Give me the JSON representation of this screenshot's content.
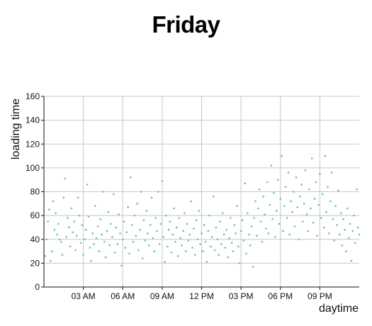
{
  "chart_data": {
    "type": "scatter",
    "title": "Friday",
    "xlabel": "daytime",
    "ylabel": "loading time",
    "x_unit": "hours",
    "xlim": [
      0,
      24
    ],
    "ylim": [
      0,
      160
    ],
    "yticks": [
      0,
      20,
      40,
      60,
      80,
      100,
      120,
      140,
      160
    ],
    "xticks": [
      {
        "value": 3,
        "label": "03 AM"
      },
      {
        "value": 6,
        "label": "06 AM"
      },
      {
        "value": 9,
        "label": "09 AM"
      },
      {
        "value": 12,
        "label": "12 PM"
      },
      {
        "value": 15,
        "label": "03 PM"
      },
      {
        "value": 18,
        "label": "06 PM"
      },
      {
        "value": 21,
        "label": "09 PM"
      }
    ],
    "grid": true,
    "point_color": "#66c2a5",
    "points": [
      [
        0.1,
        26
      ],
      [
        0.2,
        40
      ],
      [
        0.3,
        55
      ],
      [
        0.4,
        65
      ],
      [
        0.5,
        22
      ],
      [
        0.6,
        30
      ],
      [
        0.7,
        72
      ],
      [
        0.8,
        48
      ],
      [
        0.9,
        62
      ],
      [
        1.0,
        44
      ],
      [
        1.1,
        53
      ],
      [
        1.2,
        40
      ],
      [
        1.3,
        38
      ],
      [
        1.4,
        27
      ],
      [
        1.5,
        75
      ],
      [
        1.6,
        91
      ],
      [
        1.7,
        42
      ],
      [
        1.8,
        58
      ],
      [
        1.9,
        50
      ],
      [
        2.0,
        34
      ],
      [
        2.1,
        66
      ],
      [
        2.2,
        46
      ],
      [
        2.3,
        55
      ],
      [
        2.4,
        31
      ],
      [
        2.5,
        43
      ],
      [
        2.6,
        75
      ],
      [
        2.7,
        60
      ],
      [
        2.8,
        37
      ],
      [
        2.9,
        52
      ],
      [
        3.0,
        27
      ],
      [
        3.1,
        40
      ],
      [
        3.2,
        48
      ],
      [
        3.3,
        86
      ],
      [
        3.4,
        59
      ],
      [
        3.5,
        33
      ],
      [
        3.6,
        22
      ],
      [
        3.7,
        45
      ],
      [
        3.8,
        36
      ],
      [
        3.9,
        68
      ],
      [
        4.0,
        41
      ],
      [
        4.1,
        51
      ],
      [
        4.2,
        30
      ],
      [
        4.3,
        57
      ],
      [
        4.4,
        44
      ],
      [
        4.5,
        80
      ],
      [
        4.6,
        38
      ],
      [
        4.7,
        25
      ],
      [
        4.8,
        47
      ],
      [
        4.9,
        63
      ],
      [
        5.0,
        35
      ],
      [
        5.1,
        53
      ],
      [
        5.2,
        42
      ],
      [
        5.3,
        78
      ],
      [
        5.4,
        29
      ],
      [
        5.5,
        50
      ],
      [
        5.6,
        36
      ],
      [
        5.7,
        61
      ],
      [
        5.8,
        45
      ],
      [
        5.9,
        18
      ],
      [
        6.0,
        40
      ],
      [
        6.1,
        55
      ],
      [
        6.2,
        33
      ],
      [
        6.3,
        46
      ],
      [
        6.4,
        67
      ],
      [
        6.5,
        28
      ],
      [
        6.6,
        92
      ],
      [
        6.7,
        52
      ],
      [
        6.8,
        38
      ],
      [
        6.9,
        60
      ],
      [
        7.0,
        43
      ],
      [
        7.1,
        70
      ],
      [
        7.2,
        31
      ],
      [
        7.3,
        48
      ],
      [
        7.4,
        80
      ],
      [
        7.5,
        24
      ],
      [
        7.6,
        56
      ],
      [
        7.7,
        39
      ],
      [
        7.8,
        64
      ],
      [
        7.9,
        45
      ],
      [
        8.0,
        35
      ],
      [
        8.1,
        52
      ],
      [
        8.2,
        75
      ],
      [
        8.3,
        41
      ],
      [
        8.4,
        30
      ],
      [
        8.5,
        58
      ],
      [
        8.6,
        47
      ],
      [
        8.7,
        80
      ],
      [
        8.8,
        36
      ],
      [
        8.9,
        53
      ],
      [
        9.0,
        89
      ],
      [
        9.1,
        42
      ],
      [
        9.2,
        21
      ],
      [
        9.3,
        60
      ],
      [
        9.4,
        34
      ],
      [
        9.5,
        48
      ],
      [
        9.6,
        55
      ],
      [
        9.7,
        29
      ],
      [
        9.8,
        44
      ],
      [
        9.9,
        66
      ],
      [
        10.0,
        38
      ],
      [
        10.1,
        50
      ],
      [
        10.2,
        26
      ],
      [
        10.3,
        58
      ],
      [
        10.4,
        41
      ],
      [
        10.5,
        35
      ],
      [
        10.6,
        47
      ],
      [
        10.7,
        62
      ],
      [
        10.8,
        30
      ],
      [
        10.9,
        53
      ],
      [
        11.0,
        39
      ],
      [
        11.1,
        44
      ],
      [
        11.2,
        72
      ],
      [
        11.3,
        33
      ],
      [
        11.4,
        49
      ],
      [
        11.5,
        27
      ],
      [
        11.6,
        56
      ],
      [
        11.7,
        40
      ],
      [
        11.8,
        64
      ],
      [
        11.9,
        36
      ],
      [
        12.0,
        45
      ],
      [
        12.1,
        30
      ],
      [
        12.2,
        52
      ],
      [
        12.3,
        38
      ],
      [
        12.4,
        21
      ],
      [
        12.5,
        47
      ],
      [
        12.6,
        60
      ],
      [
        12.7,
        34
      ],
      [
        12.8,
        42
      ],
      [
        12.9,
        76
      ],
      [
        13.0,
        31
      ],
      [
        13.1,
        50
      ],
      [
        13.2,
        40
      ],
      [
        13.3,
        27
      ],
      [
        13.4,
        55
      ],
      [
        13.5,
        36
      ],
      [
        13.6,
        62
      ],
      [
        13.7,
        44
      ],
      [
        13.8,
        33
      ],
      [
        13.9,
        48
      ],
      [
        14.0,
        25
      ],
      [
        14.1,
        41
      ],
      [
        14.2,
        58
      ],
      [
        14.3,
        37
      ],
      [
        14.4,
        30
      ],
      [
        14.5,
        52
      ],
      [
        14.6,
        45
      ],
      [
        14.7,
        68
      ],
      [
        14.8,
        34
      ],
      [
        14.9,
        20
      ],
      [
        15.0,
        47
      ],
      [
        15.1,
        56
      ],
      [
        15.2,
        39
      ],
      [
        15.3,
        87
      ],
      [
        15.4,
        28
      ],
      [
        15.5,
        62
      ],
      [
        15.6,
        44
      ],
      [
        15.7,
        35
      ],
      [
        15.8,
        51
      ],
      [
        15.9,
        17
      ],
      [
        16.0,
        58
      ],
      [
        16.1,
        72
      ],
      [
        16.2,
        43
      ],
      [
        16.3,
        66
      ],
      [
        16.4,
        82
      ],
      [
        16.5,
        55
      ],
      [
        16.6,
        38
      ],
      [
        16.7,
        76
      ],
      [
        16.8,
        61
      ],
      [
        16.9,
        49
      ],
      [
        17.0,
        88
      ],
      [
        17.1,
        45
      ],
      [
        17.2,
        69
      ],
      [
        17.3,
        102
      ],
      [
        17.4,
        57
      ],
      [
        17.5,
        79
      ],
      [
        17.6,
        42
      ],
      [
        17.7,
        64
      ],
      [
        17.8,
        90
      ],
      [
        17.9,
        53
      ],
      [
        18.0,
        74
      ],
      [
        18.1,
        110
      ],
      [
        18.2,
        47
      ],
      [
        18.3,
        68
      ],
      [
        18.4,
        84
      ],
      [
        18.5,
        58
      ],
      [
        18.6,
        96
      ],
      [
        18.7,
        44
      ],
      [
        18.8,
        72
      ],
      [
        18.9,
        63
      ],
      [
        19.0,
        80
      ],
      [
        19.1,
        51
      ],
      [
        19.2,
        92
      ],
      [
        19.3,
        67
      ],
      [
        19.4,
        40
      ],
      [
        19.5,
        76
      ],
      [
        19.6,
        86
      ],
      [
        19.7,
        55
      ],
      [
        19.8,
        70
      ],
      [
        19.9,
        98
      ],
      [
        20.0,
        61
      ],
      [
        20.1,
        47
      ],
      [
        20.2,
        82
      ],
      [
        20.3,
        66
      ],
      [
        20.4,
        108
      ],
      [
        20.5,
        54
      ],
      [
        20.6,
        74
      ],
      [
        20.7,
        88
      ],
      [
        20.8,
        43
      ],
      [
        20.9,
        69
      ],
      [
        21.0,
        95
      ],
      [
        21.1,
        58
      ],
      [
        21.2,
        78
      ],
      [
        21.3,
        50
      ],
      [
        21.4,
        110
      ],
      [
        21.5,
        63
      ],
      [
        21.6,
        84
      ],
      [
        21.7,
        45
      ],
      [
        21.8,
        72
      ],
      [
        21.9,
        96
      ],
      [
        22.0,
        57
      ],
      [
        22.1,
        39
      ],
      [
        22.2,
        68
      ],
      [
        22.3,
        52
      ],
      [
        22.4,
        81
      ],
      [
        22.5,
        44
      ],
      [
        22.6,
        62
      ],
      [
        22.7,
        35
      ],
      [
        22.8,
        57
      ],
      [
        22.9,
        48
      ],
      [
        23.0,
        30
      ],
      [
        23.1,
        66
      ],
      [
        23.2,
        41
      ],
      [
        23.3,
        53
      ],
      [
        23.4,
        22
      ],
      [
        23.5,
        47
      ],
      [
        23.6,
        60
      ],
      [
        23.7,
        37
      ],
      [
        23.8,
        82
      ],
      [
        23.9,
        50
      ],
      [
        24.0,
        44
      ]
    ]
  }
}
